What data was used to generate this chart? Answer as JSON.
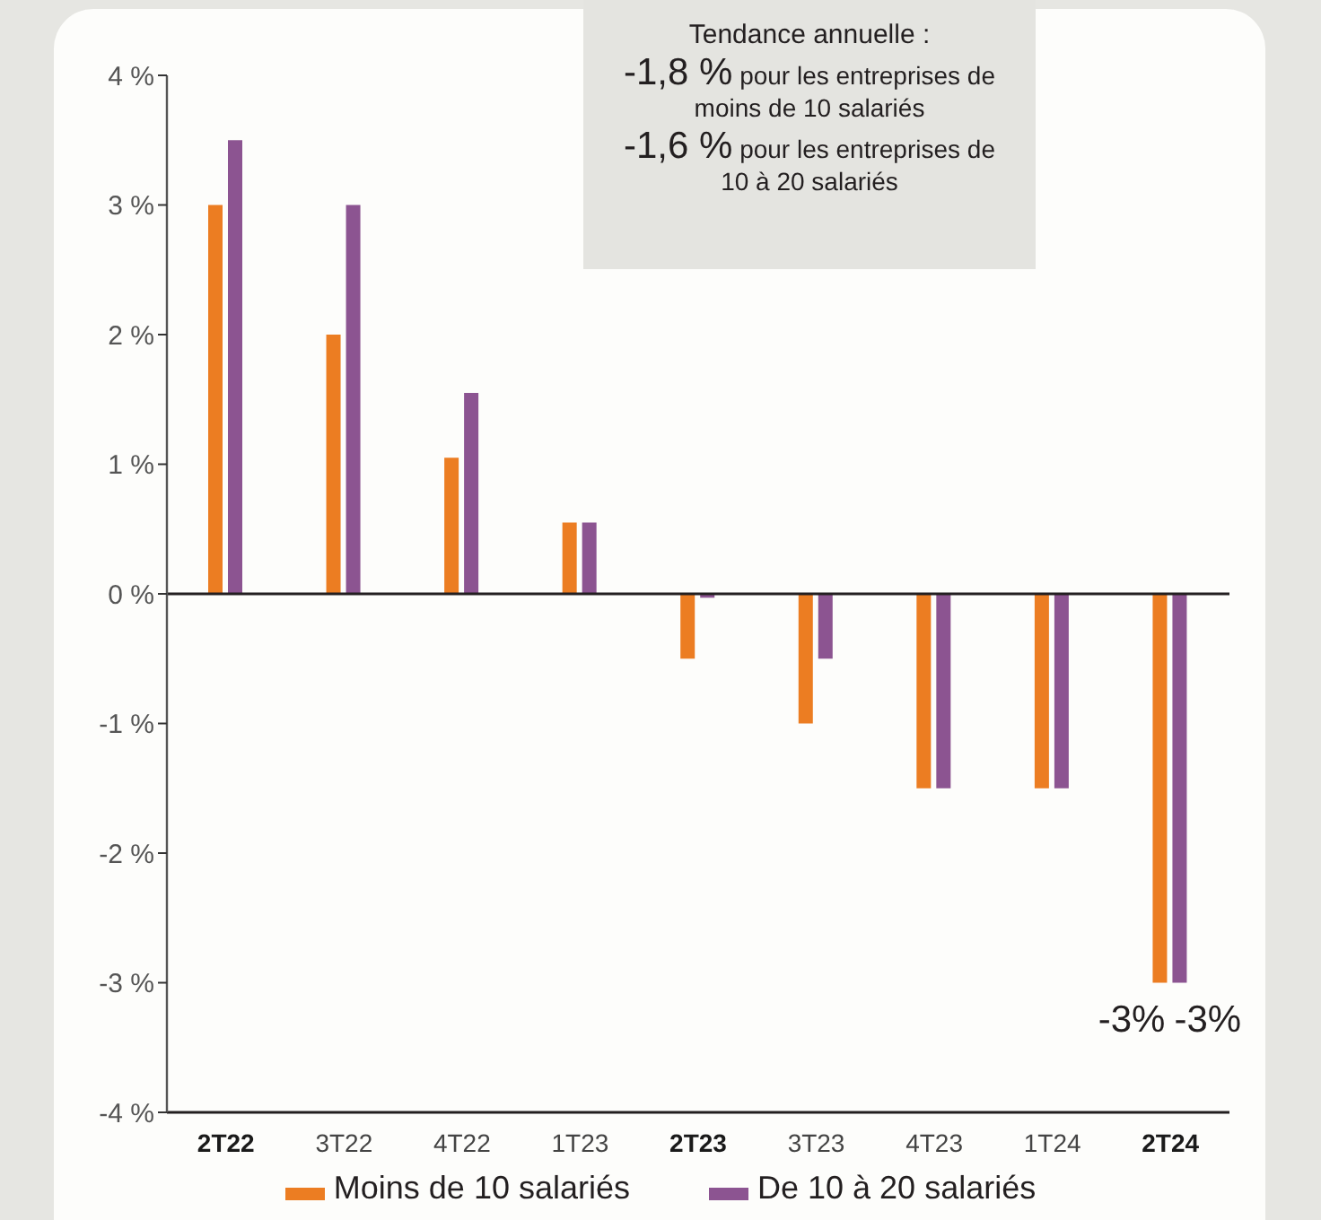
{
  "chart_data": {
    "type": "bar",
    "categories": [
      "2T22",
      "3T22",
      "4T22",
      "1T23",
      "2T23",
      "3T23",
      "4T23",
      "1T24",
      "2T24"
    ],
    "series": [
      {
        "name": "Moins de 10 salariés",
        "color": "#ec7d22",
        "values": [
          3,
          2,
          1.05,
          0.55,
          -0.5,
          -1,
          -1.5,
          -1.5,
          -3
        ],
        "value_labels": [
          null,
          null,
          null,
          null,
          null,
          null,
          null,
          null,
          "-3%"
        ]
      },
      {
        "name": "De 10 à 20 salariés",
        "color": "#8c5491",
        "values": [
          3.5,
          3,
          1.55,
          0.55,
          -0.03,
          -0.5,
          -1.5,
          -1.5,
          -3
        ],
        "value_labels": [
          null,
          null,
          null,
          null,
          null,
          null,
          null,
          null,
          "-3%"
        ]
      }
    ],
    "ylim": [
      -4,
      4
    ],
    "yticks": [
      {
        "value": -4,
        "label": "-4 %"
      },
      {
        "value": -3,
        "label": "-3 %"
      },
      {
        "value": -2,
        "label": "-2 %"
      },
      {
        "value": -1,
        "label": "-1 %"
      },
      {
        "value": 0,
        "label": "0 %"
      },
      {
        "value": 1,
        "label": "1 %"
      },
      {
        "value": 2,
        "label": "2 %"
      },
      {
        "value": 3,
        "label": "3 %"
      },
      {
        "value": 4,
        "label": "4 %"
      }
    ],
    "legend": "bottom",
    "ref_lines": [
      {
        "axis": "y",
        "value": 0,
        "color": "#231f20"
      }
    ],
    "annotations": [
      "Tendance annuelle :",
      "-1,8 % pour les entreprises de moins de 10 salariés",
      "-1,6 % pour les entreprises de 10 à 20 salariés"
    ]
  }
}
